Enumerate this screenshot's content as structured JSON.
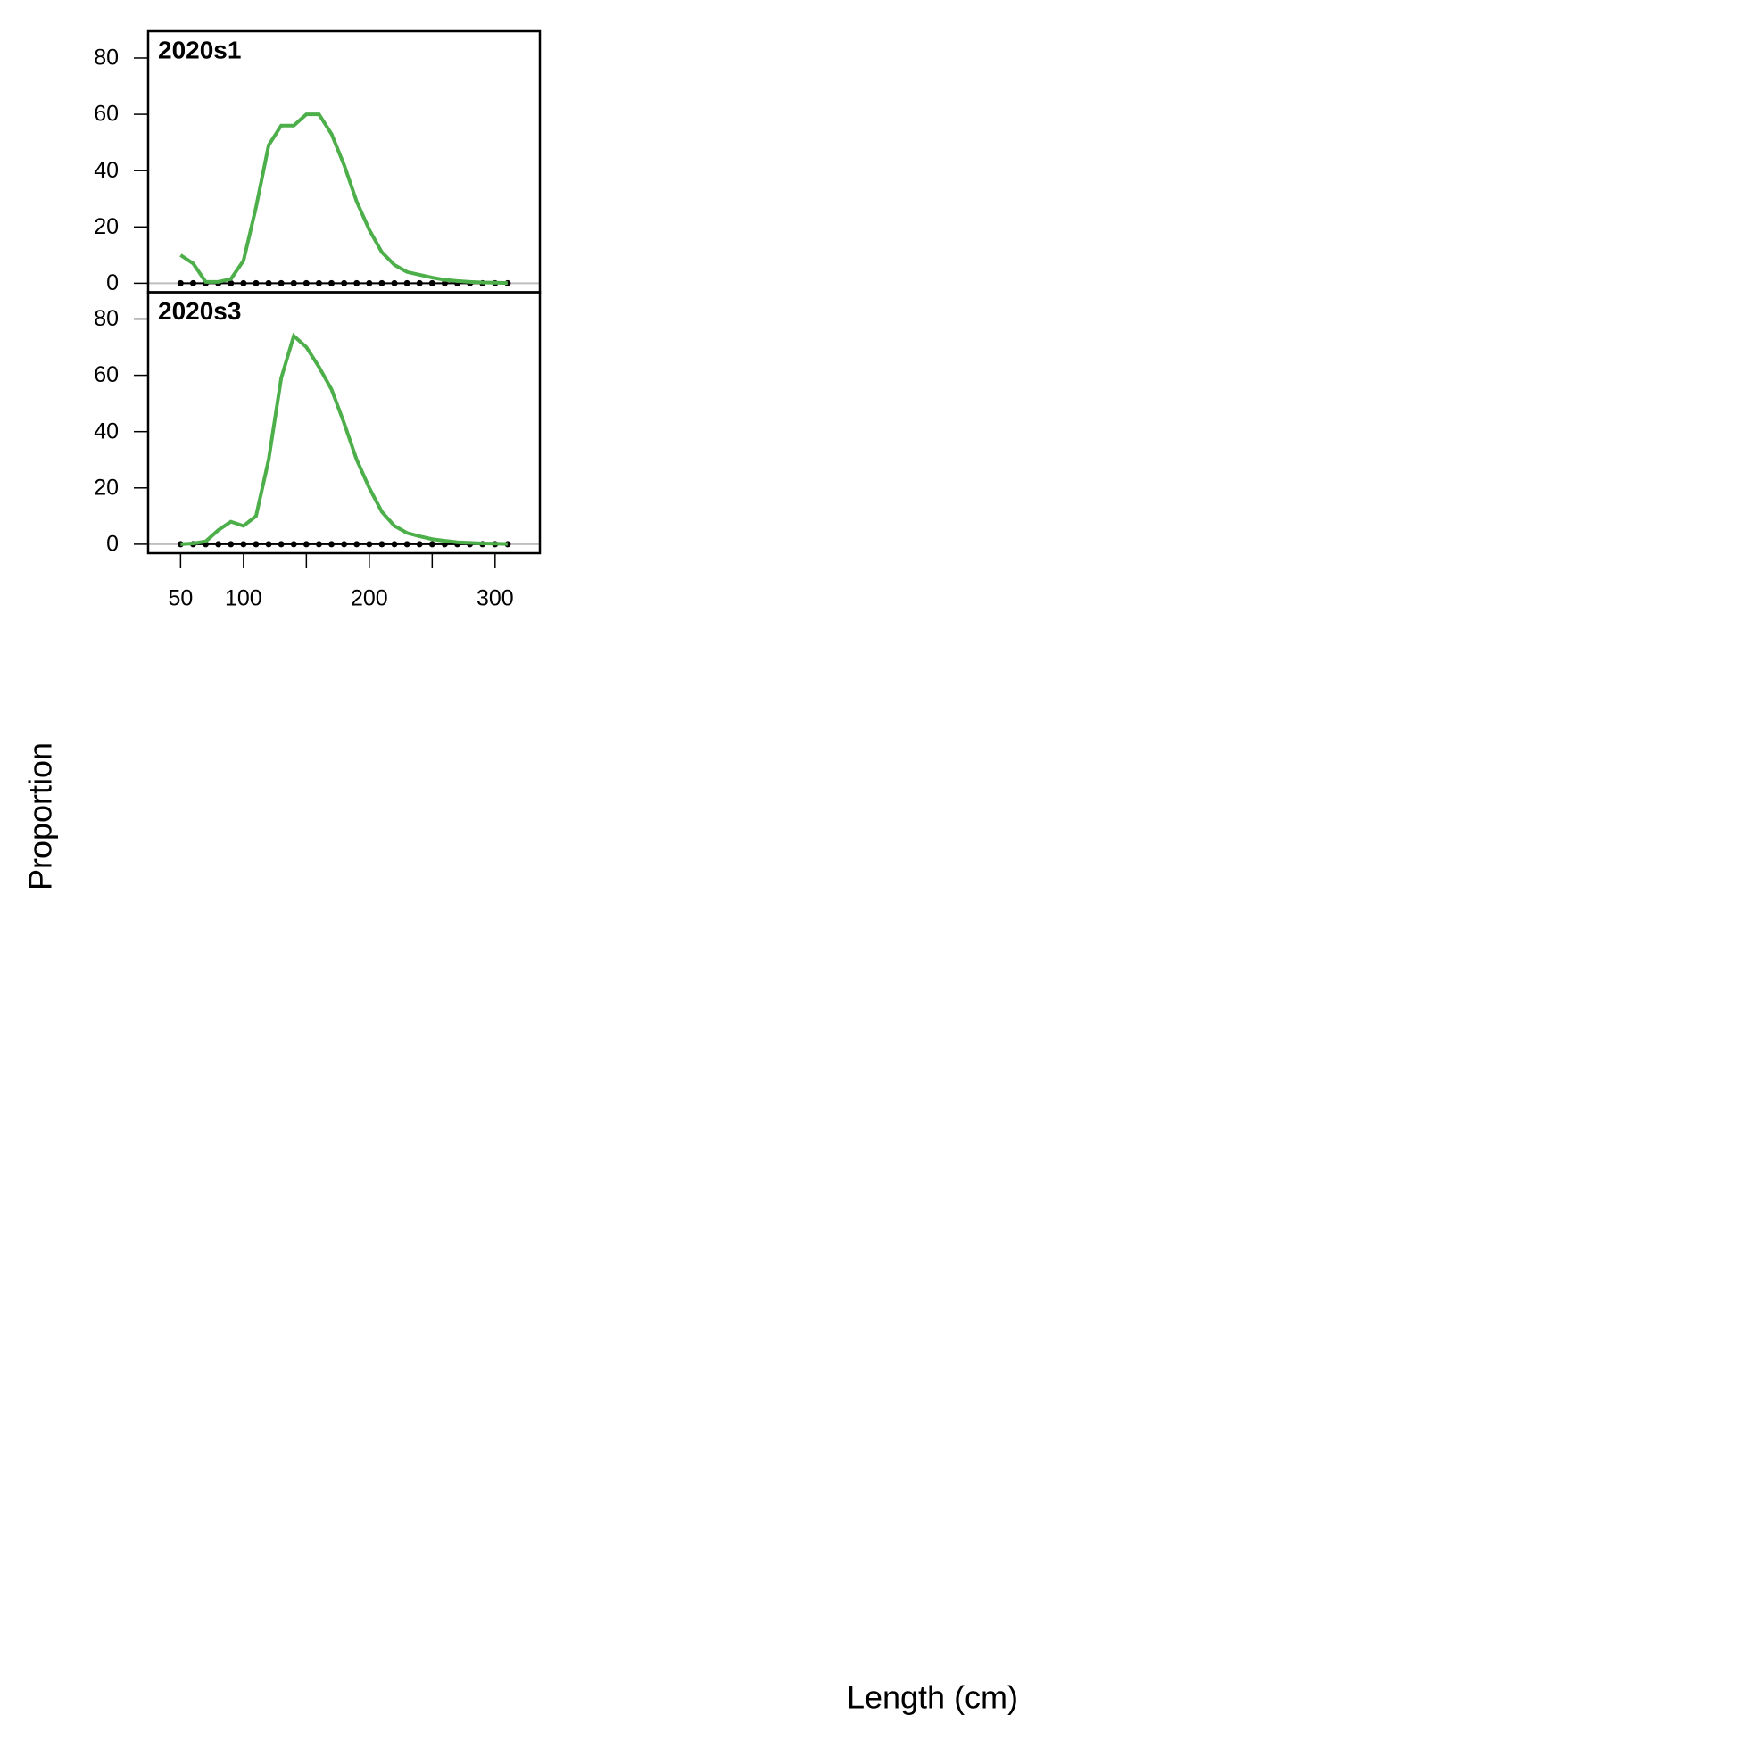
{
  "y_label": "Proportion",
  "x_label": "Length (cm)",
  "chart_data": [
    {
      "type": "line",
      "title": "2020s1",
      "x": [
        50,
        60,
        70,
        80,
        90,
        100,
        110,
        120,
        130,
        140,
        150,
        160,
        170,
        180,
        190,
        200,
        210,
        220,
        230,
        240,
        250,
        260,
        270,
        280,
        290,
        300,
        310
      ],
      "xlim": [
        24.2,
        335.6
      ],
      "ylim": [
        -3.2,
        89.5
      ],
      "yticks": [
        0,
        20,
        40,
        60,
        80
      ],
      "hline": 0,
      "hline_color": "#bebebe",
      "series": [
        {
          "color": "#000000",
          "marker": true,
          "line": true,
          "values": [
            0,
            0,
            0,
            0,
            0,
            0,
            0,
            0,
            0,
            0,
            0,
            0,
            0,
            0,
            0,
            0,
            0,
            0,
            0,
            0,
            0,
            0,
            0,
            0,
            0,
            0,
            0
          ]
        },
        {
          "color": "#4daf4a",
          "marker": false,
          "line": true,
          "values": [
            10,
            7,
            0.5,
            0.5,
            1.5,
            8,
            27,
            49,
            56,
            56,
            60,
            60,
            53,
            42,
            29,
            19,
            11,
            6.5,
            4,
            3,
            2,
            1.2,
            0.8,
            0.5,
            0.3,
            0.2,
            0.1
          ]
        }
      ]
    },
    {
      "type": "line",
      "title": "2020s3",
      "x": [
        50,
        60,
        70,
        80,
        90,
        100,
        110,
        120,
        130,
        140,
        150,
        160,
        170,
        180,
        190,
        200,
        210,
        220,
        230,
        240,
        250,
        260,
        270,
        280,
        290,
        300,
        310
      ],
      "xlim": [
        24.2,
        335.6
      ],
      "ylim": [
        -3.2,
        89.5
      ],
      "yticks": [
        0,
        20,
        40,
        60,
        80
      ],
      "hline": 0,
      "hline_color": "#bebebe",
      "xticks": [
        50,
        100,
        {
          "value": 150,
          "label": null
        },
        200,
        {
          "value": 250,
          "label": null
        },
        300
      ],
      "series": [
        {
          "color": "#000000",
          "marker": true,
          "line": true,
          "values": [
            0,
            0,
            0,
            0,
            0,
            0,
            0,
            0,
            0,
            0,
            0,
            0,
            0,
            0,
            0,
            0,
            0,
            0,
            0,
            0,
            0,
            0,
            0,
            0,
            0,
            0,
            0
          ]
        },
        {
          "color": "#4daf4a",
          "marker": false,
          "line": true,
          "values": [
            0,
            0.3,
            1,
            5,
            8,
            6.5,
            10,
            30,
            59,
            74,
            70,
            63,
            55,
            43,
            30,
            20,
            11.5,
            6.5,
            4,
            2.8,
            1.8,
            1.2,
            0.7,
            0.5,
            0.3,
            0.2,
            0.1
          ]
        }
      ]
    }
  ]
}
